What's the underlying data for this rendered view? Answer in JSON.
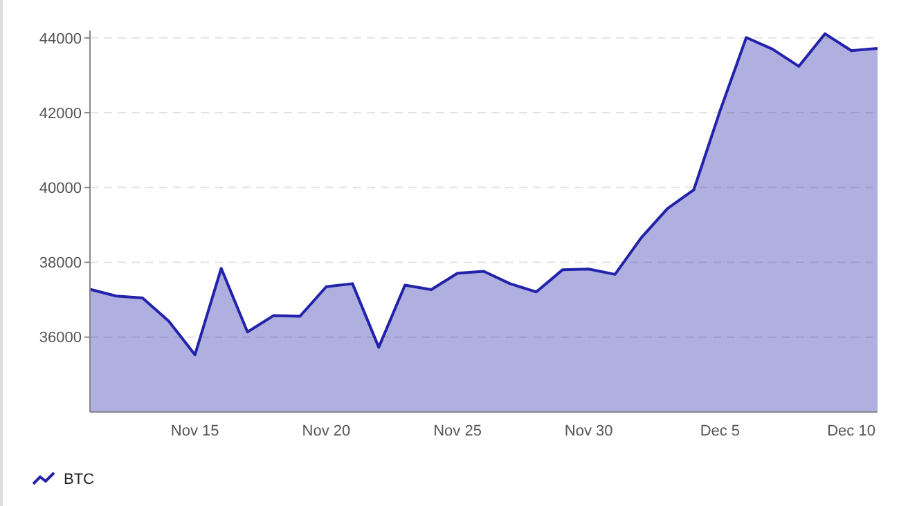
{
  "chart_data": {
    "type": "area",
    "x": [
      "--11-11",
      "--11-12",
      "--11-13",
      "--11-14",
      "--11-15",
      "--11-16",
      "--11-17",
      "--11-18",
      "--11-19",
      "--11-20",
      "--11-21",
      "--11-22",
      "--11-23",
      "--11-24",
      "--11-25",
      "--11-26",
      "--11-27",
      "--11-28",
      "--11-29",
      "--11-30",
      "--12-01",
      "--12-02",
      "--12-03",
      "--12-04",
      "--12-05",
      "--12-06",
      "--12-07",
      "--12-08",
      "--12-09",
      "--12-10",
      "--12-11"
    ],
    "series": [
      {
        "name": "BTC",
        "color": "#2222aa",
        "values": [
          37280,
          37100,
          37050,
          36430,
          35530,
          37840,
          36140,
          36580,
          36560,
          37350,
          37430,
          35730,
          37390,
          37270,
          37710,
          37760,
          37430,
          37210,
          37800,
          37820,
          37680,
          38660,
          39440,
          39940,
          42050,
          44010,
          43700,
          43240,
          44110,
          43660,
          43720
        ]
      }
    ],
    "xlim": [
      "--11-11",
      "--12-11"
    ],
    "xticks": [
      {
        "value": "--11-15",
        "label": "Nov 15"
      },
      {
        "value": "--11-20",
        "label": "Nov 20"
      },
      {
        "value": "--11-25",
        "label": "Nov 25"
      },
      {
        "value": "--11-30",
        "label": "Nov 30"
      },
      {
        "value": "--12-05",
        "label": "Dec 5"
      },
      {
        "value": "--12-10",
        "label": "Dec 10"
      }
    ],
    "ylim": [
      34000,
      44200
    ],
    "yticks": [
      36000,
      38000,
      40000,
      42000,
      44000
    ],
    "grid": "y",
    "legend": "bottom left"
  }
}
